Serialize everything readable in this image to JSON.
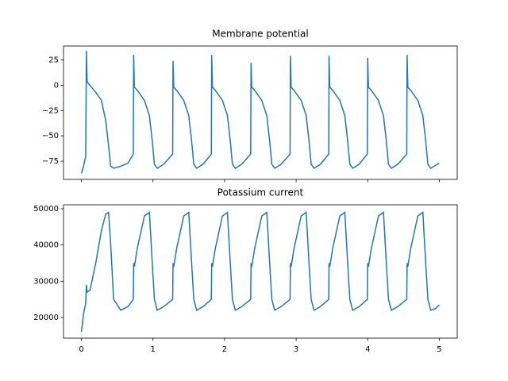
{
  "chart_data": [
    {
      "type": "line",
      "title": "Membrane potential",
      "x": [
        0,
        0.03,
        0.06,
        0.07,
        0.08,
        0.12,
        0.2,
        0.28,
        0.34,
        0.38,
        0.41,
        0.45,
        0.55,
        0.65,
        0.725,
        0.73,
        0.74,
        0.78,
        0.88,
        0.95,
        0.99,
        1.02,
        1.06,
        1.15,
        1.275,
        1.28,
        1.29,
        1.33,
        1.43,
        1.5,
        1.54,
        1.57,
        1.61,
        1.7,
        1.815,
        1.82,
        1.83,
        1.87,
        1.97,
        2.04,
        2.08,
        2.11,
        2.15,
        2.24,
        2.365,
        2.37,
        2.38,
        2.42,
        2.52,
        2.59,
        2.63,
        2.66,
        2.7,
        2.79,
        2.915,
        2.92,
        2.93,
        2.97,
        3.07,
        3.14,
        3.18,
        3.21,
        3.25,
        3.34,
        3.455,
        3.46,
        3.47,
        3.51,
        3.61,
        3.68,
        3.72,
        3.75,
        3.79,
        3.88,
        3.995,
        4.0,
        4.01,
        4.05,
        4.15,
        4.22,
        4.26,
        4.29,
        4.33,
        4.42,
        4.545,
        4.55,
        4.56,
        4.6,
        4.7,
        4.77,
        4.81,
        4.84,
        4.88,
        4.95,
        5.0
      ],
      "series": [
        {
          "color": "#1f77b4",
          "values": [
            -87,
            -80,
            -70,
            34,
            3,
            0,
            -7,
            -15,
            -35,
            -60,
            -80,
            -82,
            -80,
            -77,
            -68,
            30,
            -2,
            -5,
            -15,
            -30,
            -55,
            -78,
            -82,
            -78,
            -68,
            24,
            -2,
            -5,
            -15,
            -30,
            -55,
            -78,
            -82,
            -78,
            -68,
            30,
            -2,
            -5,
            -15,
            -30,
            -55,
            -78,
            -82,
            -78,
            -68,
            22,
            -2,
            -5,
            -15,
            -30,
            -55,
            -78,
            -82,
            -78,
            -68,
            29,
            -2,
            -5,
            -15,
            -30,
            -55,
            -78,
            -82,
            -78,
            -68,
            29,
            -2,
            -5,
            -15,
            -30,
            -55,
            -78,
            -82,
            -78,
            -68,
            27,
            -2,
            -5,
            -15,
            -30,
            -55,
            -78,
            -82,
            -78,
            -68,
            30,
            -2,
            -5,
            -15,
            -30,
            -55,
            -78,
            -82,
            -79,
            -77
          ]
        }
      ],
      "xlim": [
        -0.25,
        5.25
      ],
      "ylim": [
        -93,
        38.7
      ],
      "xticks": [
        0,
        1,
        2,
        3,
        4,
        5
      ],
      "show_xtick_labels": false,
      "yticks": [
        {
          "value": -75,
          "label": "−75"
        },
        {
          "value": -50,
          "label": "−50"
        },
        {
          "value": -25,
          "label": "−25"
        },
        0,
        25
      ]
    },
    {
      "type": "line",
      "title": "Potassium current",
      "x": [
        0,
        0.03,
        0.06,
        0.07,
        0.08,
        0.12,
        0.2,
        0.28,
        0.34,
        0.38,
        0.41,
        0.45,
        0.55,
        0.65,
        0.725,
        0.73,
        0.74,
        0.78,
        0.88,
        0.95,
        0.99,
        1.02,
        1.06,
        1.15,
        1.275,
        1.28,
        1.29,
        1.33,
        1.43,
        1.5,
        1.54,
        1.57,
        1.61,
        1.7,
        1.815,
        1.82,
        1.83,
        1.87,
        1.97,
        2.04,
        2.08,
        2.11,
        2.15,
        2.24,
        2.365,
        2.37,
        2.38,
        2.42,
        2.52,
        2.59,
        2.63,
        2.66,
        2.7,
        2.79,
        2.915,
        2.92,
        2.93,
        2.97,
        3.07,
        3.14,
        3.18,
        3.21,
        3.25,
        3.34,
        3.455,
        3.46,
        3.47,
        3.51,
        3.61,
        3.68,
        3.72,
        3.75,
        3.79,
        3.88,
        3.995,
        4.0,
        4.01,
        4.05,
        4.15,
        4.22,
        4.26,
        4.29,
        4.33,
        4.42,
        4.545,
        4.55,
        4.56,
        4.6,
        4.7,
        4.77,
        4.81,
        4.84,
        4.88,
        4.95,
        5.0
      ],
      "series": [
        {
          "color": "#1f77b4",
          "values": [
            16000,
            21000,
            24000,
            29000,
            27000,
            27500,
            35000,
            44000,
            48500,
            49000,
            40000,
            25000,
            22000,
            23000,
            25000,
            35000,
            34000,
            39000,
            48000,
            49000,
            35000,
            25000,
            22000,
            23000,
            25000,
            35000,
            34000,
            39000,
            48000,
            49000,
            35000,
            25000,
            22000,
            23000,
            25000,
            35000,
            34000,
            39000,
            48000,
            49000,
            35000,
            25000,
            22000,
            23000,
            25000,
            35000,
            34000,
            39000,
            48000,
            49000,
            35000,
            25000,
            22000,
            23000,
            25000,
            35000,
            34000,
            39000,
            48000,
            49000,
            35000,
            25000,
            22000,
            23000,
            25000,
            35000,
            34000,
            39000,
            48000,
            49000,
            35000,
            25000,
            22000,
            23000,
            25000,
            35000,
            34000,
            39000,
            48000,
            49000,
            35000,
            25000,
            22000,
            23000,
            25000,
            35000,
            34000,
            39000,
            48000,
            49000,
            35000,
            25000,
            22000,
            22500,
            23500
          ]
        }
      ],
      "xlim": [
        -0.25,
        5.25
      ],
      "ylim": [
        14300,
        51100
      ],
      "xticks": [
        0,
        1,
        2,
        3,
        4,
        5
      ],
      "show_xtick_labels": true,
      "yticks": [
        20000,
        30000,
        40000,
        50000
      ]
    }
  ]
}
